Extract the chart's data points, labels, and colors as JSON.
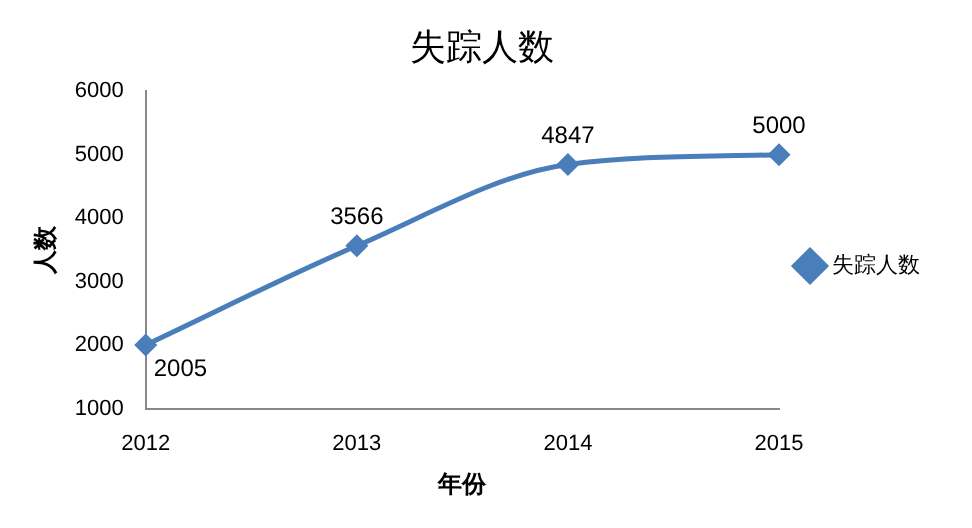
{
  "chart_data": {
    "type": "line",
    "title": "失踪人数",
    "xlabel": "年份",
    "ylabel": "人数",
    "categories": [
      "2012",
      "2013",
      "2014",
      "2015"
    ],
    "series": [
      {
        "name": "失踪人数",
        "color": "#4a7ebb",
        "values": [
          2005,
          3566,
          4847,
          5000
        ]
      }
    ],
    "ylim": [
      1000,
      6000
    ],
    "yticks": [
      1000,
      2000,
      3000,
      4000,
      5000,
      6000
    ],
    "grid": false,
    "legend": "right",
    "marker": "diamond",
    "line_style": "solid",
    "data_labels": true
  }
}
